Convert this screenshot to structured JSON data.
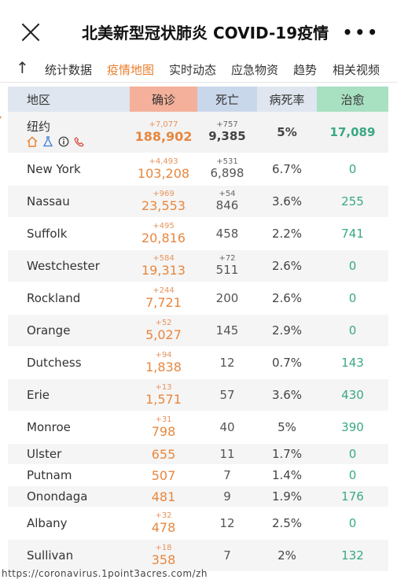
{
  "header": {
    "title": "北美新型冠状肺炎 COVID-19疫情"
  },
  "tabs": [
    {
      "label": "统计数据"
    },
    {
      "label": "疫情地图"
    },
    {
      "label": "实时动态"
    },
    {
      "label": "应急物资"
    },
    {
      "label": "趋势"
    },
    {
      "label": "相关视频"
    }
  ],
  "active_tab": "疫情地图",
  "table": {
    "headers": {
      "region": "地区",
      "confirmed": "确诊",
      "deaths": "死亡",
      "fatality_rate": "病死率",
      "recovered": "治愈"
    },
    "total": {
      "region": "纽约",
      "confirmed_delta": "+7,077",
      "confirmed": "188,902",
      "deaths_delta": "+757",
      "deaths": "9,385",
      "rate": "5%",
      "recovered": "17,089"
    },
    "rows": [
      {
        "region": "New York",
        "confirmed_delta": "+4,493",
        "confirmed": "103,208",
        "deaths_delta": "+531",
        "deaths": "6,898",
        "rate": "6.7%",
        "recovered": "0"
      },
      {
        "region": "Nassau",
        "confirmed_delta": "+969",
        "confirmed": "23,553",
        "deaths_delta": "+54",
        "deaths": "846",
        "rate": "3.6%",
        "recovered": "255"
      },
      {
        "region": "Suffolk",
        "confirmed_delta": "+495",
        "confirmed": "20,816",
        "deaths_delta": "",
        "deaths": "458",
        "rate": "2.2%",
        "recovered": "741"
      },
      {
        "region": "Westchester",
        "confirmed_delta": "+584",
        "confirmed": "19,313",
        "deaths_delta": "+72",
        "deaths": "511",
        "rate": "2.6%",
        "recovered": "0"
      },
      {
        "region": "Rockland",
        "confirmed_delta": "+244",
        "confirmed": "7,721",
        "deaths_delta": "",
        "deaths": "200",
        "rate": "2.6%",
        "recovered": "0"
      },
      {
        "region": "Orange",
        "confirmed_delta": "+52",
        "confirmed": "5,027",
        "deaths_delta": "",
        "deaths": "145",
        "rate": "2.9%",
        "recovered": "0"
      },
      {
        "region": "Dutchess",
        "confirmed_delta": "+94",
        "confirmed": "1,838",
        "deaths_delta": "",
        "deaths": "12",
        "rate": "0.7%",
        "recovered": "143"
      },
      {
        "region": "Erie",
        "confirmed_delta": "+13",
        "confirmed": "1,571",
        "deaths_delta": "",
        "deaths": "57",
        "rate": "3.6%",
        "recovered": "430"
      },
      {
        "region": "Monroe",
        "confirmed_delta": "+31",
        "confirmed": "798",
        "deaths_delta": "",
        "deaths": "40",
        "rate": "5%",
        "recovered": "390"
      },
      {
        "region": "Ulster",
        "confirmed_delta": "",
        "confirmed": "655",
        "deaths_delta": "",
        "deaths": "11",
        "rate": "1.7%",
        "recovered": "0"
      },
      {
        "region": "Putnam",
        "confirmed_delta": "",
        "confirmed": "507",
        "deaths_delta": "",
        "deaths": "7",
        "rate": "1.4%",
        "recovered": "0"
      },
      {
        "region": "Onondaga",
        "confirmed_delta": "",
        "confirmed": "481",
        "deaths_delta": "",
        "deaths": "9",
        "rate": "1.9%",
        "recovered": "176"
      },
      {
        "region": "Albany",
        "confirmed_delta": "+32",
        "confirmed": "478",
        "deaths_delta": "",
        "deaths": "12",
        "rate": "2.5%",
        "recovered": "0"
      },
      {
        "region": "Sullivan",
        "confirmed_delta": "+18",
        "confirmed": "358",
        "deaths_delta": "",
        "deaths": "7",
        "rate": "2%",
        "recovered": "132"
      }
    ]
  },
  "footer": {
    "url": "https://coronavirus.1point3acres.com/zh"
  },
  "icons": {
    "close": "close-icon",
    "more": "more-dots-icon",
    "back": "arrow-up-icon",
    "expand": "triangle-down-icon",
    "home": "home-icon",
    "lab": "flask-icon",
    "info": "info-icon",
    "phone": "phone-icon"
  },
  "colors": {
    "accent": "#e97f2e",
    "confirmed": "#e7873f",
    "recovered": "#3aa883",
    "confirmed_header": "#f4b09a",
    "deaths_header": "#c9d7ea",
    "recovered_header": "#a8e0c2"
  }
}
